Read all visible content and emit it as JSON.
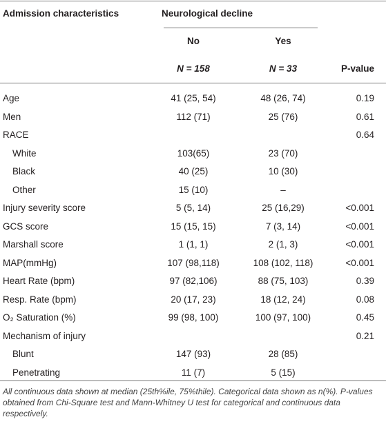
{
  "table": {
    "header": {
      "label": "Admission characteristics",
      "group": "Neurological decline",
      "no": "No",
      "yes": "Yes",
      "n_no": "N = 158",
      "n_yes": "N = 33",
      "p": "P-value"
    },
    "rows": [
      {
        "label": "Age",
        "no": "41 (25, 54)",
        "yes": "48 (26, 74)",
        "p": "0.19"
      },
      {
        "label": "Men",
        "no": "112 (71)",
        "yes": "25 (76)",
        "p": "0.61"
      },
      {
        "label": "RACE",
        "p": "0.64"
      },
      {
        "label": "White",
        "no": "103(65)",
        "yes": "23 (70)",
        "indent": true
      },
      {
        "label": "Black",
        "no": "40 (25)",
        "yes": "10 (30)",
        "indent": true
      },
      {
        "label": "Other",
        "no": "15 (10)",
        "yes": "–",
        "indent": true
      },
      {
        "label": "Injury severity score",
        "no": "5 (5, 14)",
        "yes": "25 (16,29)",
        "p": "<0.001"
      },
      {
        "label": "GCS score",
        "no": "15 (15, 15)",
        "yes": "7 (3, 14)",
        "p": "<0.001"
      },
      {
        "label": "Marshall score",
        "no": "1 (1, 1)",
        "yes": "2 (1, 3)",
        "p": "<0.001"
      },
      {
        "label": "MAP(mmHg)",
        "no": "107 (98,118)",
        "yes": "108 (102, 118)",
        "p": "<0.001"
      },
      {
        "label": "Heart Rate (bpm)",
        "no": "97 (82,106)",
        "yes": "88 (75, 103)",
        "p": "0.39"
      },
      {
        "label": "Resp. Rate (bpm)",
        "no": "20 (17, 23)",
        "yes": "18 (12, 24)",
        "p": "0.08"
      },
      {
        "label": "O₂ Saturation (%)",
        "no": "99 (98, 100)",
        "yes": "100 (97, 100)",
        "p": "0.45"
      },
      {
        "label": "Mechanism of injury",
        "p": "0.21"
      },
      {
        "label": "Blunt",
        "no": "147 (93)",
        "yes": "28 (85)",
        "indent": true
      },
      {
        "label": "Penetrating",
        "no": "11 (7)",
        "yes": "5 (15)",
        "indent": true
      }
    ],
    "footnote": "All continuous data shown at median (25th%ile, 75%thile). Categorical data shown as n(%). P-values obtained from Chi-Square test and Mann-Whitney U test for categorical and continuous data respectively."
  }
}
